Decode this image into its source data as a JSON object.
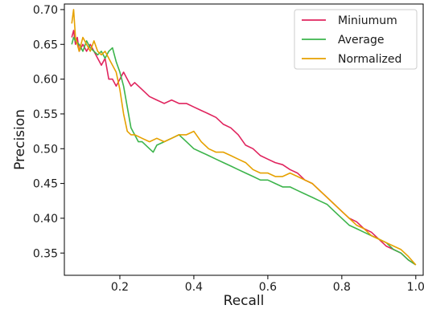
{
  "chart_data": {
    "type": "line",
    "xlabel": "Recall",
    "ylabel": "Precision",
    "xlim": [
      0.05,
      1.02
    ],
    "ylim": [
      0.318,
      0.708
    ],
    "xticks": [
      0.2,
      0.4,
      0.6,
      0.8,
      1.0
    ],
    "xtick_labels": [
      "0.2",
      "0.4",
      "0.6",
      "0.8",
      "1.0"
    ],
    "yticks": [
      0.35,
      0.4,
      0.45,
      0.5,
      0.55,
      0.6,
      0.65,
      0.7
    ],
    "ytick_labels": [
      "0.35",
      "0.40",
      "0.45",
      "0.50",
      "0.55",
      "0.60",
      "0.65",
      "0.70"
    ],
    "grid": false,
    "legend_position": "top-right",
    "series": [
      {
        "name": "Miniumum",
        "color": "#e0245e",
        "x": [
          0.07,
          0.075,
          0.08,
          0.085,
          0.09,
          0.1,
          0.11,
          0.12,
          0.13,
          0.14,
          0.15,
          0.16,
          0.17,
          0.18,
          0.19,
          0.2,
          0.21,
          0.22,
          0.23,
          0.24,
          0.26,
          0.28,
          0.3,
          0.32,
          0.34,
          0.36,
          0.38,
          0.4,
          0.42,
          0.44,
          0.46,
          0.48,
          0.5,
          0.52,
          0.54,
          0.56,
          0.58,
          0.6,
          0.62,
          0.64,
          0.66,
          0.68,
          0.7,
          0.72,
          0.74,
          0.76,
          0.78,
          0.8,
          0.82,
          0.84,
          0.86,
          0.88,
          0.9,
          0.92,
          0.94,
          0.96,
          0.98,
          1.0
        ],
        "y": [
          0.66,
          0.67,
          0.65,
          0.66,
          0.64,
          0.65,
          0.64,
          0.65,
          0.64,
          0.63,
          0.62,
          0.63,
          0.6,
          0.6,
          0.59,
          0.6,
          0.61,
          0.6,
          0.59,
          0.595,
          0.585,
          0.575,
          0.57,
          0.565,
          0.57,
          0.565,
          0.565,
          0.56,
          0.555,
          0.55,
          0.545,
          0.535,
          0.53,
          0.52,
          0.505,
          0.5,
          0.49,
          0.485,
          0.48,
          0.477,
          0.47,
          0.465,
          0.455,
          0.45,
          0.44,
          0.43,
          0.42,
          0.41,
          0.4,
          0.395,
          0.385,
          0.38,
          0.37,
          0.36,
          0.355,
          0.35,
          0.34,
          0.333
        ]
      },
      {
        "name": "Average",
        "color": "#3cb44b",
        "x": [
          0.07,
          0.075,
          0.08,
          0.09,
          0.1,
          0.11,
          0.12,
          0.13,
          0.14,
          0.15,
          0.16,
          0.17,
          0.18,
          0.19,
          0.2,
          0.21,
          0.22,
          0.23,
          0.24,
          0.25,
          0.26,
          0.27,
          0.28,
          0.29,
          0.3,
          0.32,
          0.34,
          0.36,
          0.38,
          0.4,
          0.42,
          0.44,
          0.46,
          0.48,
          0.5,
          0.52,
          0.54,
          0.56,
          0.58,
          0.6,
          0.62,
          0.64,
          0.66,
          0.68,
          0.7,
          0.72,
          0.74,
          0.76,
          0.78,
          0.8,
          0.82,
          0.84,
          0.86,
          0.88,
          0.9,
          0.92,
          0.94,
          0.96,
          0.98,
          1.0
        ],
        "y": [
          0.65,
          0.66,
          0.655,
          0.65,
          0.64,
          0.655,
          0.645,
          0.64,
          0.635,
          0.64,
          0.63,
          0.64,
          0.645,
          0.625,
          0.61,
          0.59,
          0.56,
          0.53,
          0.52,
          0.51,
          0.51,
          0.505,
          0.5,
          0.495,
          0.505,
          0.51,
          0.515,
          0.52,
          0.51,
          0.5,
          0.495,
          0.49,
          0.485,
          0.48,
          0.475,
          0.47,
          0.465,
          0.46,
          0.455,
          0.455,
          0.45,
          0.445,
          0.445,
          0.44,
          0.435,
          0.43,
          0.425,
          0.42,
          0.41,
          0.4,
          0.39,
          0.385,
          0.38,
          0.375,
          0.37,
          0.365,
          0.355,
          0.35,
          0.34,
          0.333
        ]
      },
      {
        "name": "Normalized",
        "color": "#e6a100",
        "x": [
          0.07,
          0.075,
          0.08,
          0.085,
          0.09,
          0.1,
          0.11,
          0.12,
          0.13,
          0.14,
          0.15,
          0.16,
          0.17,
          0.18,
          0.19,
          0.2,
          0.21,
          0.22,
          0.23,
          0.24,
          0.26,
          0.28,
          0.3,
          0.32,
          0.34,
          0.36,
          0.38,
          0.4,
          0.42,
          0.44,
          0.46,
          0.48,
          0.5,
          0.52,
          0.54,
          0.56,
          0.58,
          0.6,
          0.62,
          0.64,
          0.66,
          0.68,
          0.7,
          0.72,
          0.74,
          0.76,
          0.78,
          0.8,
          0.82,
          0.84,
          0.86,
          0.88,
          0.9,
          0.92,
          0.94,
          0.96,
          0.98,
          1.0
        ],
        "y": [
          0.68,
          0.7,
          0.66,
          0.65,
          0.64,
          0.66,
          0.65,
          0.64,
          0.655,
          0.64,
          0.635,
          0.64,
          0.63,
          0.62,
          0.61,
          0.585,
          0.55,
          0.525,
          0.52,
          0.52,
          0.515,
          0.51,
          0.515,
          0.51,
          0.515,
          0.52,
          0.52,
          0.525,
          0.51,
          0.5,
          0.495,
          0.495,
          0.49,
          0.485,
          0.48,
          0.47,
          0.465,
          0.465,
          0.46,
          0.46,
          0.465,
          0.46,
          0.455,
          0.45,
          0.44,
          0.43,
          0.42,
          0.41,
          0.4,
          0.39,
          0.385,
          0.375,
          0.37,
          0.365,
          0.36,
          0.355,
          0.345,
          0.333
        ]
      }
    ]
  }
}
